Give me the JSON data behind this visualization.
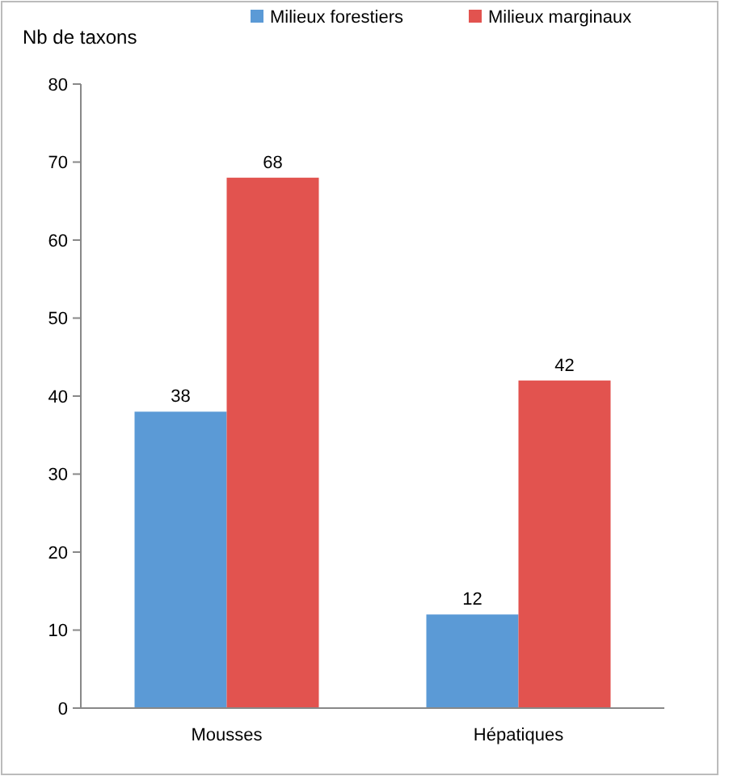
{
  "chart_data": {
    "type": "bar",
    "ylabel": "Nb de taxons",
    "categories": [
      "Mousses",
      "Hépatiques"
    ],
    "series": [
      {
        "name": "Milieux forestiers",
        "color": "#5b9ad6",
        "values": [
          38,
          12
        ]
      },
      {
        "name": "Milieux marginaux",
        "color": "#e2534f",
        "values": [
          68,
          42
        ]
      }
    ],
    "ylim": [
      0,
      80
    ],
    "yticks": [
      0,
      10,
      20,
      30,
      40,
      50,
      60,
      70,
      80
    ],
    "grid": false,
    "legend": "top",
    "data_labels": true
  }
}
